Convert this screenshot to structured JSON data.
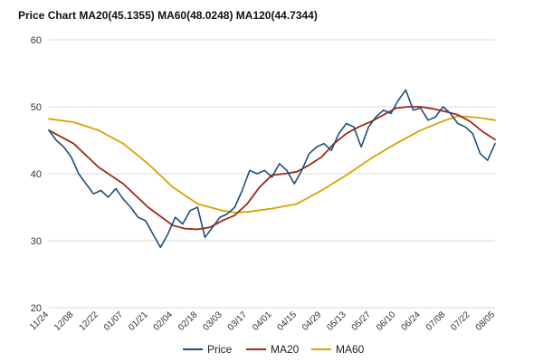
{
  "chart_data": {
    "type": "line",
    "title": "Price Chart MA20(45.1355) MA60(48.0248) MA120(44.7344)",
    "xlabel": "",
    "ylabel": "",
    "ylim": [
      20,
      60
    ],
    "yticks": [
      20,
      30,
      40,
      50,
      60
    ],
    "grid": true,
    "legend": "bottom",
    "x_tick_labels": [
      "11/24",
      "12/08",
      "12/22",
      "01/07",
      "01/21",
      "02/04",
      "02/18",
      "03/03",
      "03/17",
      "04/01",
      "04/15",
      "04/29",
      "05/13",
      "05/27",
      "06/10",
      "06/24",
      "07/08",
      "07/22",
      "08/05"
    ],
    "n_points": 181,
    "series": [
      {
        "name": "Price",
        "color": "#1f4e79",
        "points": [
          [
            0,
            46.5
          ],
          [
            3,
            45.0
          ],
          [
            6,
            44.0
          ],
          [
            9,
            42.5
          ],
          [
            12,
            40.0
          ],
          [
            15,
            38.5
          ],
          [
            18,
            37.0
          ],
          [
            21,
            37.5
          ],
          [
            24,
            36.5
          ],
          [
            27,
            37.8
          ],
          [
            30,
            36.2
          ],
          [
            33,
            35.0
          ],
          [
            36,
            33.5
          ],
          [
            39,
            33.0
          ],
          [
            42,
            31.0
          ],
          [
            45,
            29.0
          ],
          [
            48,
            31.0
          ],
          [
            51,
            33.5
          ],
          [
            54,
            32.5
          ],
          [
            57,
            34.5
          ],
          [
            60,
            35.0
          ],
          [
            63,
            30.5
          ],
          [
            66,
            32.0
          ],
          [
            69,
            33.5
          ],
          [
            72,
            34.0
          ],
          [
            75,
            35.0
          ],
          [
            78,
            37.5
          ],
          [
            81,
            40.5
          ],
          [
            84,
            40.0
          ],
          [
            87,
            40.5
          ],
          [
            90,
            39.5
          ],
          [
            93,
            41.5
          ],
          [
            96,
            40.5
          ],
          [
            99,
            38.5
          ],
          [
            102,
            40.5
          ],
          [
            105,
            43.0
          ],
          [
            108,
            44.0
          ],
          [
            111,
            44.5
          ],
          [
            114,
            43.5
          ],
          [
            117,
            46.0
          ],
          [
            120,
            47.5
          ],
          [
            123,
            47.0
          ],
          [
            126,
            44.0
          ],
          [
            129,
            47.0
          ],
          [
            132,
            48.5
          ],
          [
            135,
            49.5
          ],
          [
            138,
            49.0
          ],
          [
            141,
            51.0
          ],
          [
            144,
            52.5
          ],
          [
            147,
            49.5
          ],
          [
            150,
            49.8
          ],
          [
            153,
            48.0
          ],
          [
            156,
            48.5
          ],
          [
            159,
            50.0
          ],
          [
            162,
            49.0
          ],
          [
            165,
            47.5
          ],
          [
            168,
            47.0
          ],
          [
            171,
            46.0
          ],
          [
            174,
            43.0
          ],
          [
            177,
            42.0
          ],
          [
            180,
            44.5
          ]
        ]
      },
      {
        "name": "MA20",
        "color": "#9c2a1a",
        "points": [
          [
            0,
            46.5
          ],
          [
            10,
            44.5
          ],
          [
            20,
            41.0
          ],
          [
            30,
            38.5
          ],
          [
            40,
            35.0
          ],
          [
            50,
            32.3
          ],
          [
            55,
            31.8
          ],
          [
            60,
            31.7
          ],
          [
            65,
            32.0
          ],
          [
            70,
            33.0
          ],
          [
            75,
            33.8
          ],
          [
            80,
            35.5
          ],
          [
            85,
            38.0
          ],
          [
            90,
            39.8
          ],
          [
            95,
            40.0
          ],
          [
            100,
            40.3
          ],
          [
            105,
            41.3
          ],
          [
            110,
            42.5
          ],
          [
            115,
            44.5
          ],
          [
            120,
            46.0
          ],
          [
            125,
            47.0
          ],
          [
            130,
            47.8
          ],
          [
            135,
            48.8
          ],
          [
            140,
            49.8
          ],
          [
            145,
            50.0
          ],
          [
            150,
            50.0
          ],
          [
            155,
            49.7
          ],
          [
            160,
            49.3
          ],
          [
            165,
            48.8
          ],
          [
            170,
            47.8
          ],
          [
            175,
            46.3
          ],
          [
            180,
            45.1
          ]
        ]
      },
      {
        "name": "MA60",
        "color": "#d4a300",
        "points": [
          [
            0,
            48.2
          ],
          [
            10,
            47.7
          ],
          [
            20,
            46.5
          ],
          [
            30,
            44.5
          ],
          [
            40,
            41.5
          ],
          [
            50,
            38.0
          ],
          [
            60,
            35.5
          ],
          [
            70,
            34.5
          ],
          [
            75,
            34.2
          ],
          [
            80,
            34.3
          ],
          [
            90,
            34.8
          ],
          [
            100,
            35.5
          ],
          [
            110,
            37.5
          ],
          [
            120,
            39.8
          ],
          [
            130,
            42.3
          ],
          [
            140,
            44.5
          ],
          [
            150,
            46.5
          ],
          [
            160,
            48.0
          ],
          [
            165,
            48.6
          ],
          [
            170,
            48.5
          ],
          [
            175,
            48.3
          ],
          [
            180,
            48.0
          ]
        ]
      }
    ]
  }
}
